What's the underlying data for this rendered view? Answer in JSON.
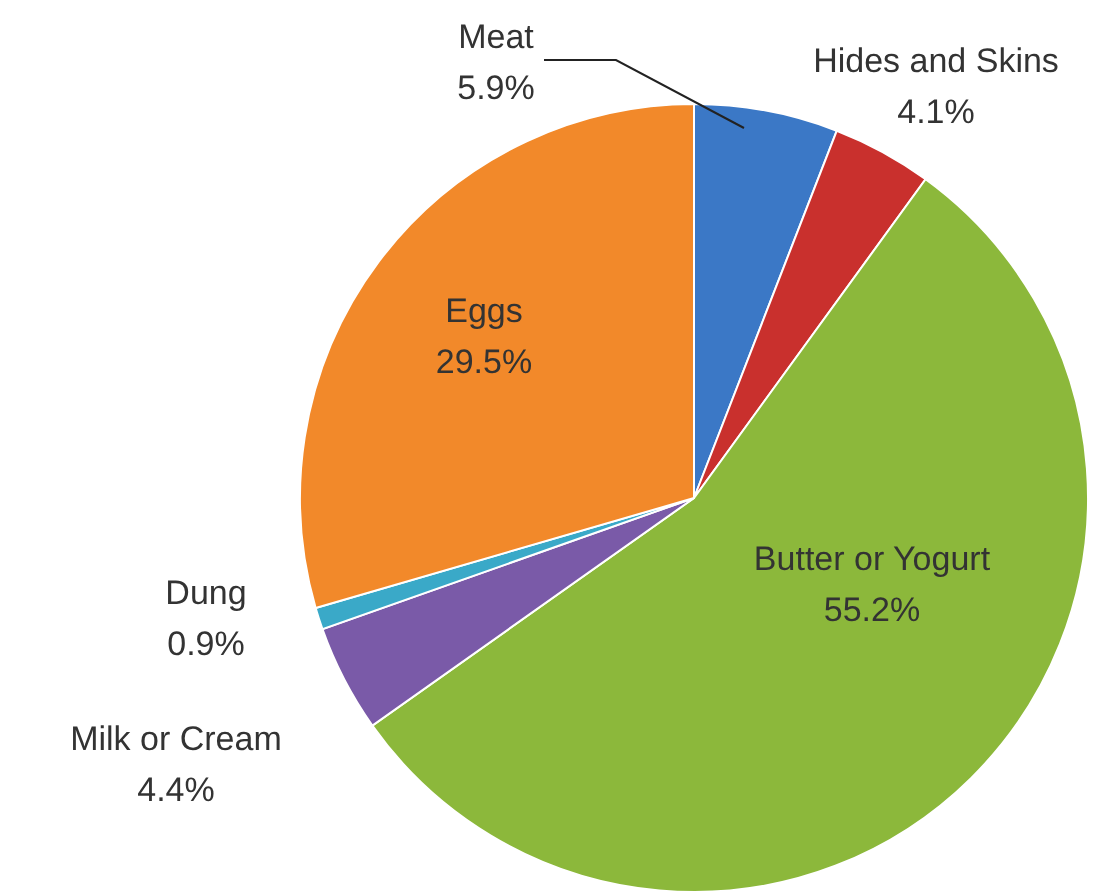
{
  "chart_data": {
    "type": "pie",
    "categories": [
      "Meat",
      "Hides and Skins",
      "Butter or Yogurt",
      "Milk or Cream",
      "Dung",
      "Eggs"
    ],
    "values": [
      5.9,
      4.1,
      55.2,
      4.4,
      0.9,
      29.5
    ],
    "value_labels": [
      "5.9%",
      "4.1%",
      "55.2%",
      "4.4%",
      "0.9%",
      "29.5%"
    ],
    "colors": [
      "#3b78c6",
      "#c9302d",
      "#8cb83b",
      "#7a5aa8",
      "#3aa9c8",
      "#f2892a"
    ]
  }
}
